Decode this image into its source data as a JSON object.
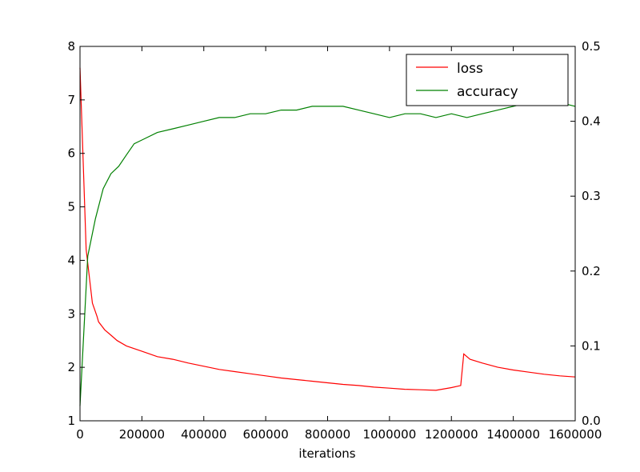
{
  "chart_data": {
    "type": "line",
    "title": "",
    "xlabel": "iterations",
    "ylabel": "",
    "y2label": "",
    "xlim": [
      0,
      1600000
    ],
    "ylim": [
      1,
      8
    ],
    "y2lim": [
      0,
      0.5
    ],
    "x_ticks": [
      "0",
      "200000",
      "400000",
      "600000",
      "800000",
      "1000000",
      "1200000",
      "1400000",
      "1600000"
    ],
    "y_ticks": [
      "1",
      "2",
      "3",
      "4",
      "5",
      "6",
      "7",
      "8"
    ],
    "y2_ticks": [
      "0.0",
      "0.1",
      "0.2",
      "0.3",
      "0.4",
      "0.5"
    ],
    "grid": false,
    "legend_position": "top-right",
    "colors": {
      "loss": "#ff0000",
      "accuracy": "#008000"
    },
    "series": [
      {
        "name": "loss",
        "axis": "left",
        "x": [
          0,
          20000,
          40000,
          55000,
          60000,
          80000,
          100000,
          120000,
          150000,
          200000,
          250000,
          300000,
          350000,
          400000,
          450000,
          500000,
          550000,
          600000,
          650000,
          700000,
          750000,
          800000,
          850000,
          900000,
          950000,
          1000000,
          1050000,
          1100000,
          1150000,
          1200000,
          1230000,
          1240000,
          1260000,
          1300000,
          1350000,
          1400000,
          1450000,
          1500000,
          1550000,
          1600000
        ],
        "values": [
          7.6,
          4.2,
          3.2,
          2.95,
          2.85,
          2.7,
          2.6,
          2.5,
          2.4,
          2.3,
          2.2,
          2.15,
          2.08,
          2.02,
          1.96,
          1.92,
          1.88,
          1.84,
          1.8,
          1.77,
          1.74,
          1.71,
          1.68,
          1.66,
          1.63,
          1.61,
          1.59,
          1.58,
          1.57,
          1.62,
          1.66,
          2.25,
          2.15,
          2.08,
          2.0,
          1.95,
          1.91,
          1.87,
          1.84,
          1.82
        ]
      },
      {
        "name": "accuracy",
        "axis": "right",
        "x": [
          0,
          25000,
          50000,
          75000,
          100000,
          125000,
          150000,
          175000,
          200000,
          250000,
          300000,
          350000,
          400000,
          450000,
          500000,
          550000,
          600000,
          650000,
          700000,
          750000,
          800000,
          850000,
          900000,
          950000,
          1000000,
          1050000,
          1100000,
          1150000,
          1200000,
          1250000,
          1300000,
          1350000,
          1400000,
          1450000,
          1500000,
          1550000,
          1600000
        ],
        "values": [
          0.02,
          0.22,
          0.27,
          0.31,
          0.33,
          0.34,
          0.355,
          0.37,
          0.375,
          0.385,
          0.39,
          0.395,
          0.4,
          0.405,
          0.405,
          0.41,
          0.41,
          0.415,
          0.415,
          0.42,
          0.42,
          0.42,
          0.415,
          0.41,
          0.405,
          0.41,
          0.41,
          0.405,
          0.41,
          0.405,
          0.41,
          0.415,
          0.42,
          0.425,
          0.43,
          0.425,
          0.42
        ]
      }
    ]
  }
}
